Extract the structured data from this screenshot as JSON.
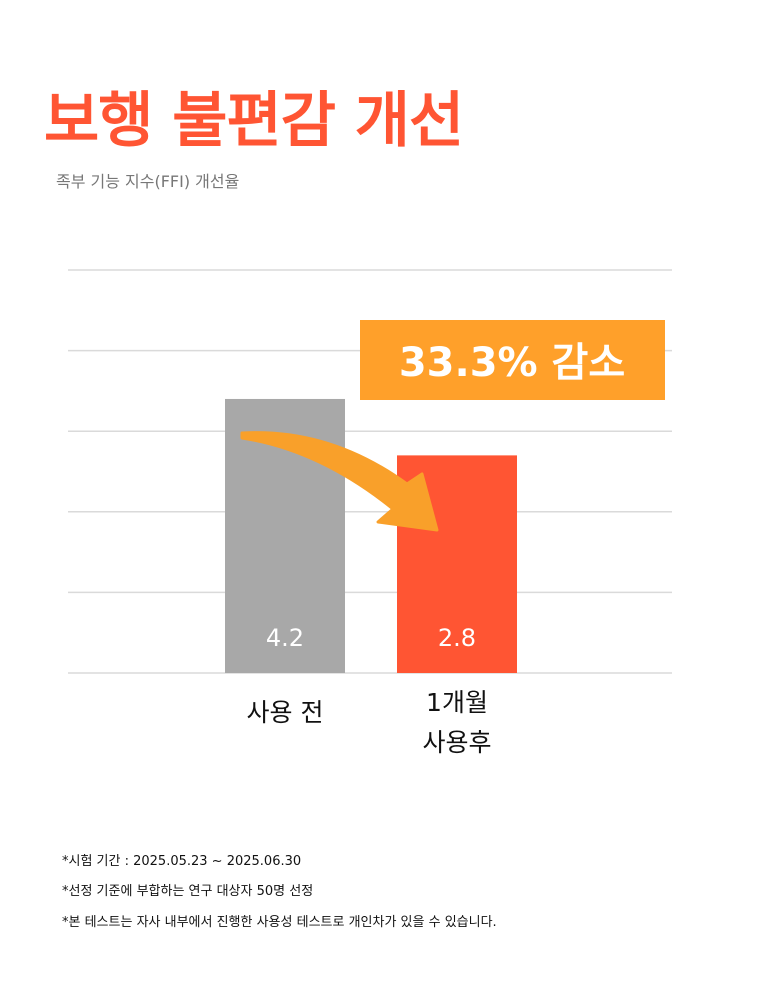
{
  "title": "보행 불편감 개선",
  "subtitle": "족부 기능 지수(FFI) 개선율",
  "badge": {
    "text": "33.3% 감소",
    "color": "#FFA02A"
  },
  "chart_data": {
    "type": "bar",
    "categories": [
      "사용 전",
      "1개월 사용후"
    ],
    "category_lines": [
      [
        "사용 전"
      ],
      [
        "1개월",
        "사용후"
      ]
    ],
    "values": [
      4.2,
      2.8
    ],
    "data_labels": [
      "4.2",
      "2.8"
    ],
    "colors": [
      "#A8A8A8",
      "#FF5533"
    ],
    "ylim": [
      -2.6,
      7.4
    ],
    "gridlines": 5,
    "grid": true,
    "arrow_color": "#F9A02A"
  },
  "notes": [
    "*시험 기간 : 2025.05.23 ~ 2025.06.30",
    "*선정 기준에 부합하는 연구 대상자 50명 선정",
    "*본 테스트는 자사 내부에서 진행한 사용성 테스트로 개인차가 있을 수 있습니다."
  ]
}
